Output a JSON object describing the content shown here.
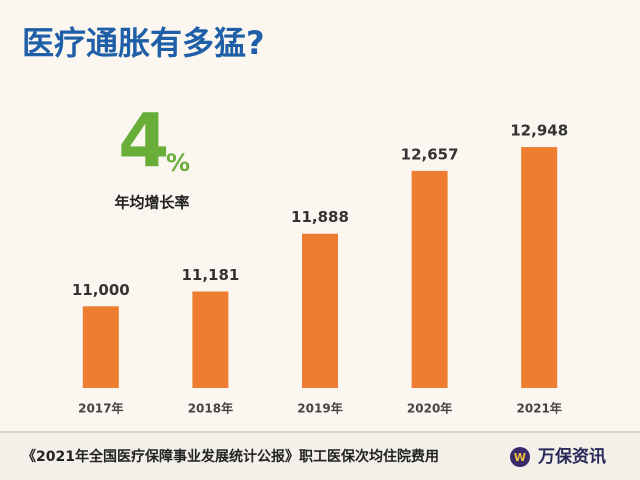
{
  "chart_data": {
    "type": "bar",
    "title": "医疗通胀有多猛?",
    "annotation_value": "4",
    "annotation_unit": "%",
    "annotation_label": "年均增长率",
    "categories": [
      "2017年",
      "2018年",
      "2019年",
      "2020年",
      "2021年"
    ],
    "values": [
      11000,
      11181,
      11888,
      12657,
      12948
    ],
    "value_labels": [
      "11,000",
      "11,181",
      "11,888",
      "12,657",
      "12,948"
    ],
    "color": "#ed7d31",
    "ylim": [
      10000,
      13500
    ]
  },
  "footer": {
    "source": "《2021年全国医疗保障事业发展统计公报》职工医保次均住院费用",
    "brand": "万保资讯"
  }
}
